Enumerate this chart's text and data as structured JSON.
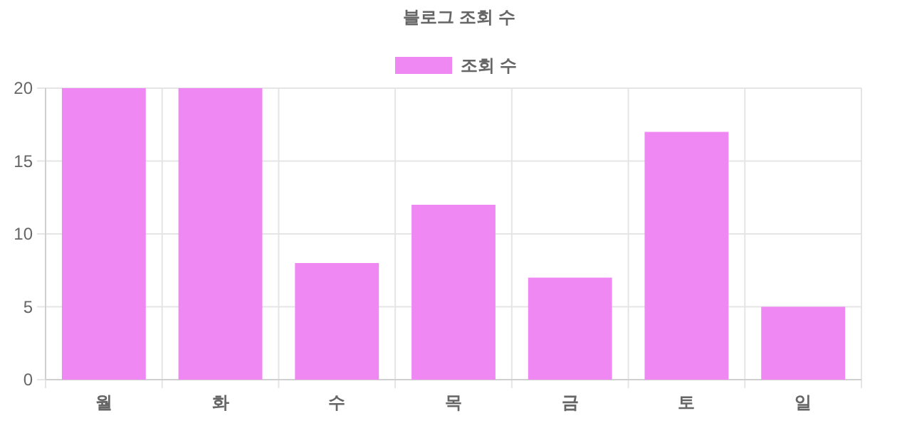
{
  "chart_data": {
    "type": "bar",
    "title": "블로그 조회 수",
    "categories": [
      "월",
      "화",
      "수",
      "목",
      "금",
      "토",
      "일"
    ],
    "series": [
      {
        "name": "조회 수",
        "color": "#f088f4",
        "values": [
          20,
          20,
          8,
          12,
          7,
          17,
          5
        ]
      }
    ],
    "ylim": [
      0,
      20
    ],
    "yticks": [
      0,
      5,
      10,
      15,
      20
    ],
    "grid": true,
    "legend": "top"
  }
}
